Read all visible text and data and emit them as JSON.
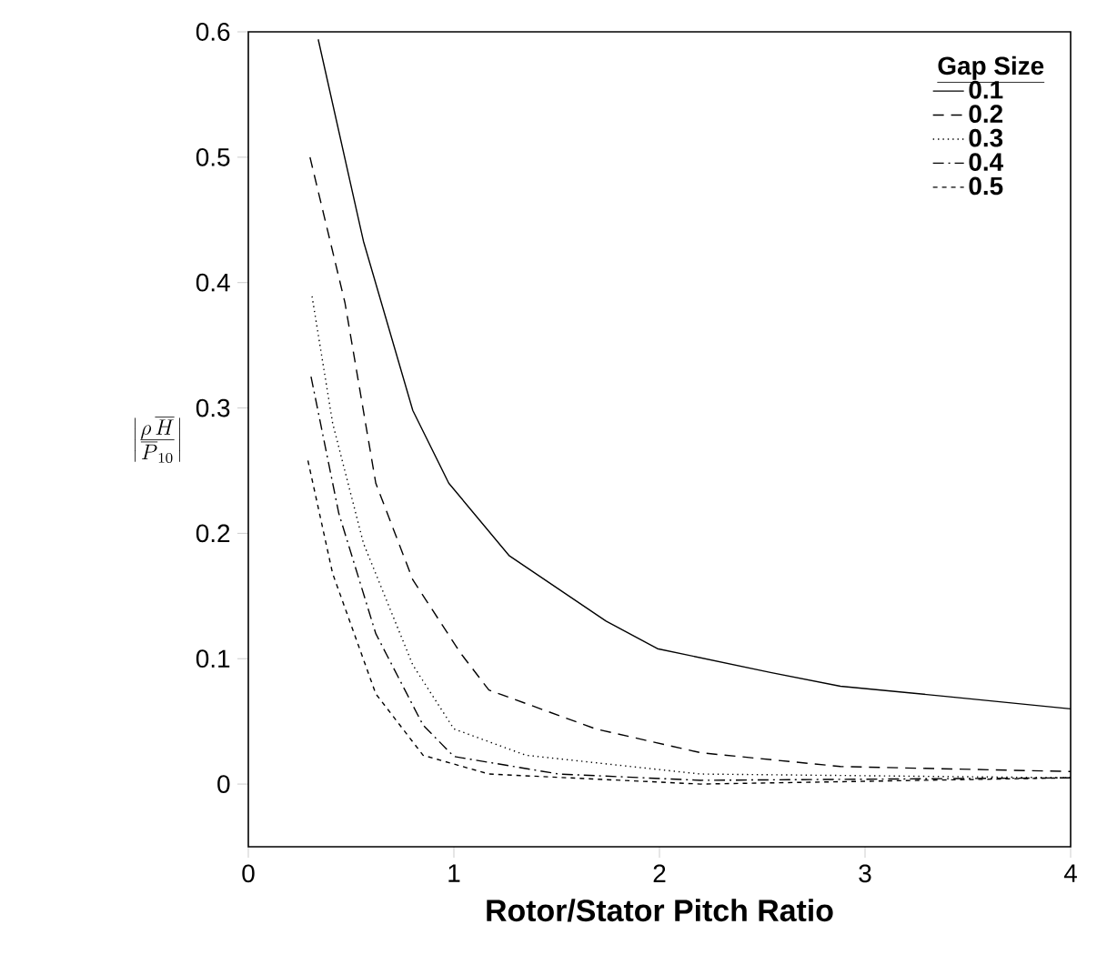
{
  "chart_data": {
    "type": "line",
    "xlabel": "Rotor/Stator Pitch Ratio",
    "ylabel": "\\left|\\frac{\\rho\\,\\overline{H}}{\\overline{P}_{10}}\\right|",
    "legend_title": "Gap Size",
    "legend": "top right",
    "xlim": [
      0,
      4
    ],
    "ylim": [
      -0.05,
      0.6
    ],
    "xticks": [
      0,
      1,
      2,
      3,
      4
    ],
    "yticks": [
      0,
      0.1,
      0.2,
      0.3,
      0.4,
      0.5,
      0.6
    ],
    "grid": false,
    "series": [
      {
        "name": "0.1",
        "color": "#000000",
        "line_style": "solid",
        "x": [
          0.34,
          0.56,
          0.8,
          0.975,
          1.27,
          1.74,
          1.99,
          2.54,
          2.88,
          3.39,
          4
        ],
        "values": [
          0.594,
          0.433,
          0.298,
          0.24,
          0.182,
          0.13,
          0.108,
          0.089,
          0.078,
          0.07,
          0.06
        ]
      },
      {
        "name": "0.2",
        "color": "#000000",
        "line_style": "dashed",
        "x": [
          0.3,
          0.47,
          0.62,
          0.8,
          1.03,
          1.17,
          1.69,
          2.2,
          2.88,
          4
        ],
        "values": [
          0.5,
          0.384,
          0.24,
          0.163,
          0.105,
          0.075,
          0.044,
          0.025,
          0.014,
          0.01
        ]
      },
      {
        "name": "0.3",
        "color": "#000000",
        "line_style": "dotted",
        "x": [
          0.31,
          0.41,
          0.56,
          0.8,
          1.0,
          1.35,
          2.2,
          4
        ],
        "values": [
          0.389,
          0.288,
          0.192,
          0.095,
          0.044,
          0.023,
          0.008,
          0.005
        ]
      },
      {
        "name": "0.4",
        "color": "#000000",
        "line_style": "dashdot",
        "x": [
          0.305,
          0.44,
          0.62,
          0.85,
          1.0,
          1.51,
          2.2,
          4
        ],
        "values": [
          0.325,
          0.216,
          0.12,
          0.047,
          0.022,
          0.008,
          0.003,
          0.005
        ]
      },
      {
        "name": "0.5",
        "color": "#000000",
        "line_style": "short dashed",
        "x": [
          0.29,
          0.41,
          0.62,
          0.85,
          1.17,
          2.2,
          4
        ],
        "values": [
          0.258,
          0.168,
          0.072,
          0.023,
          0.008,
          0.0,
          0.005
        ]
      }
    ]
  }
}
